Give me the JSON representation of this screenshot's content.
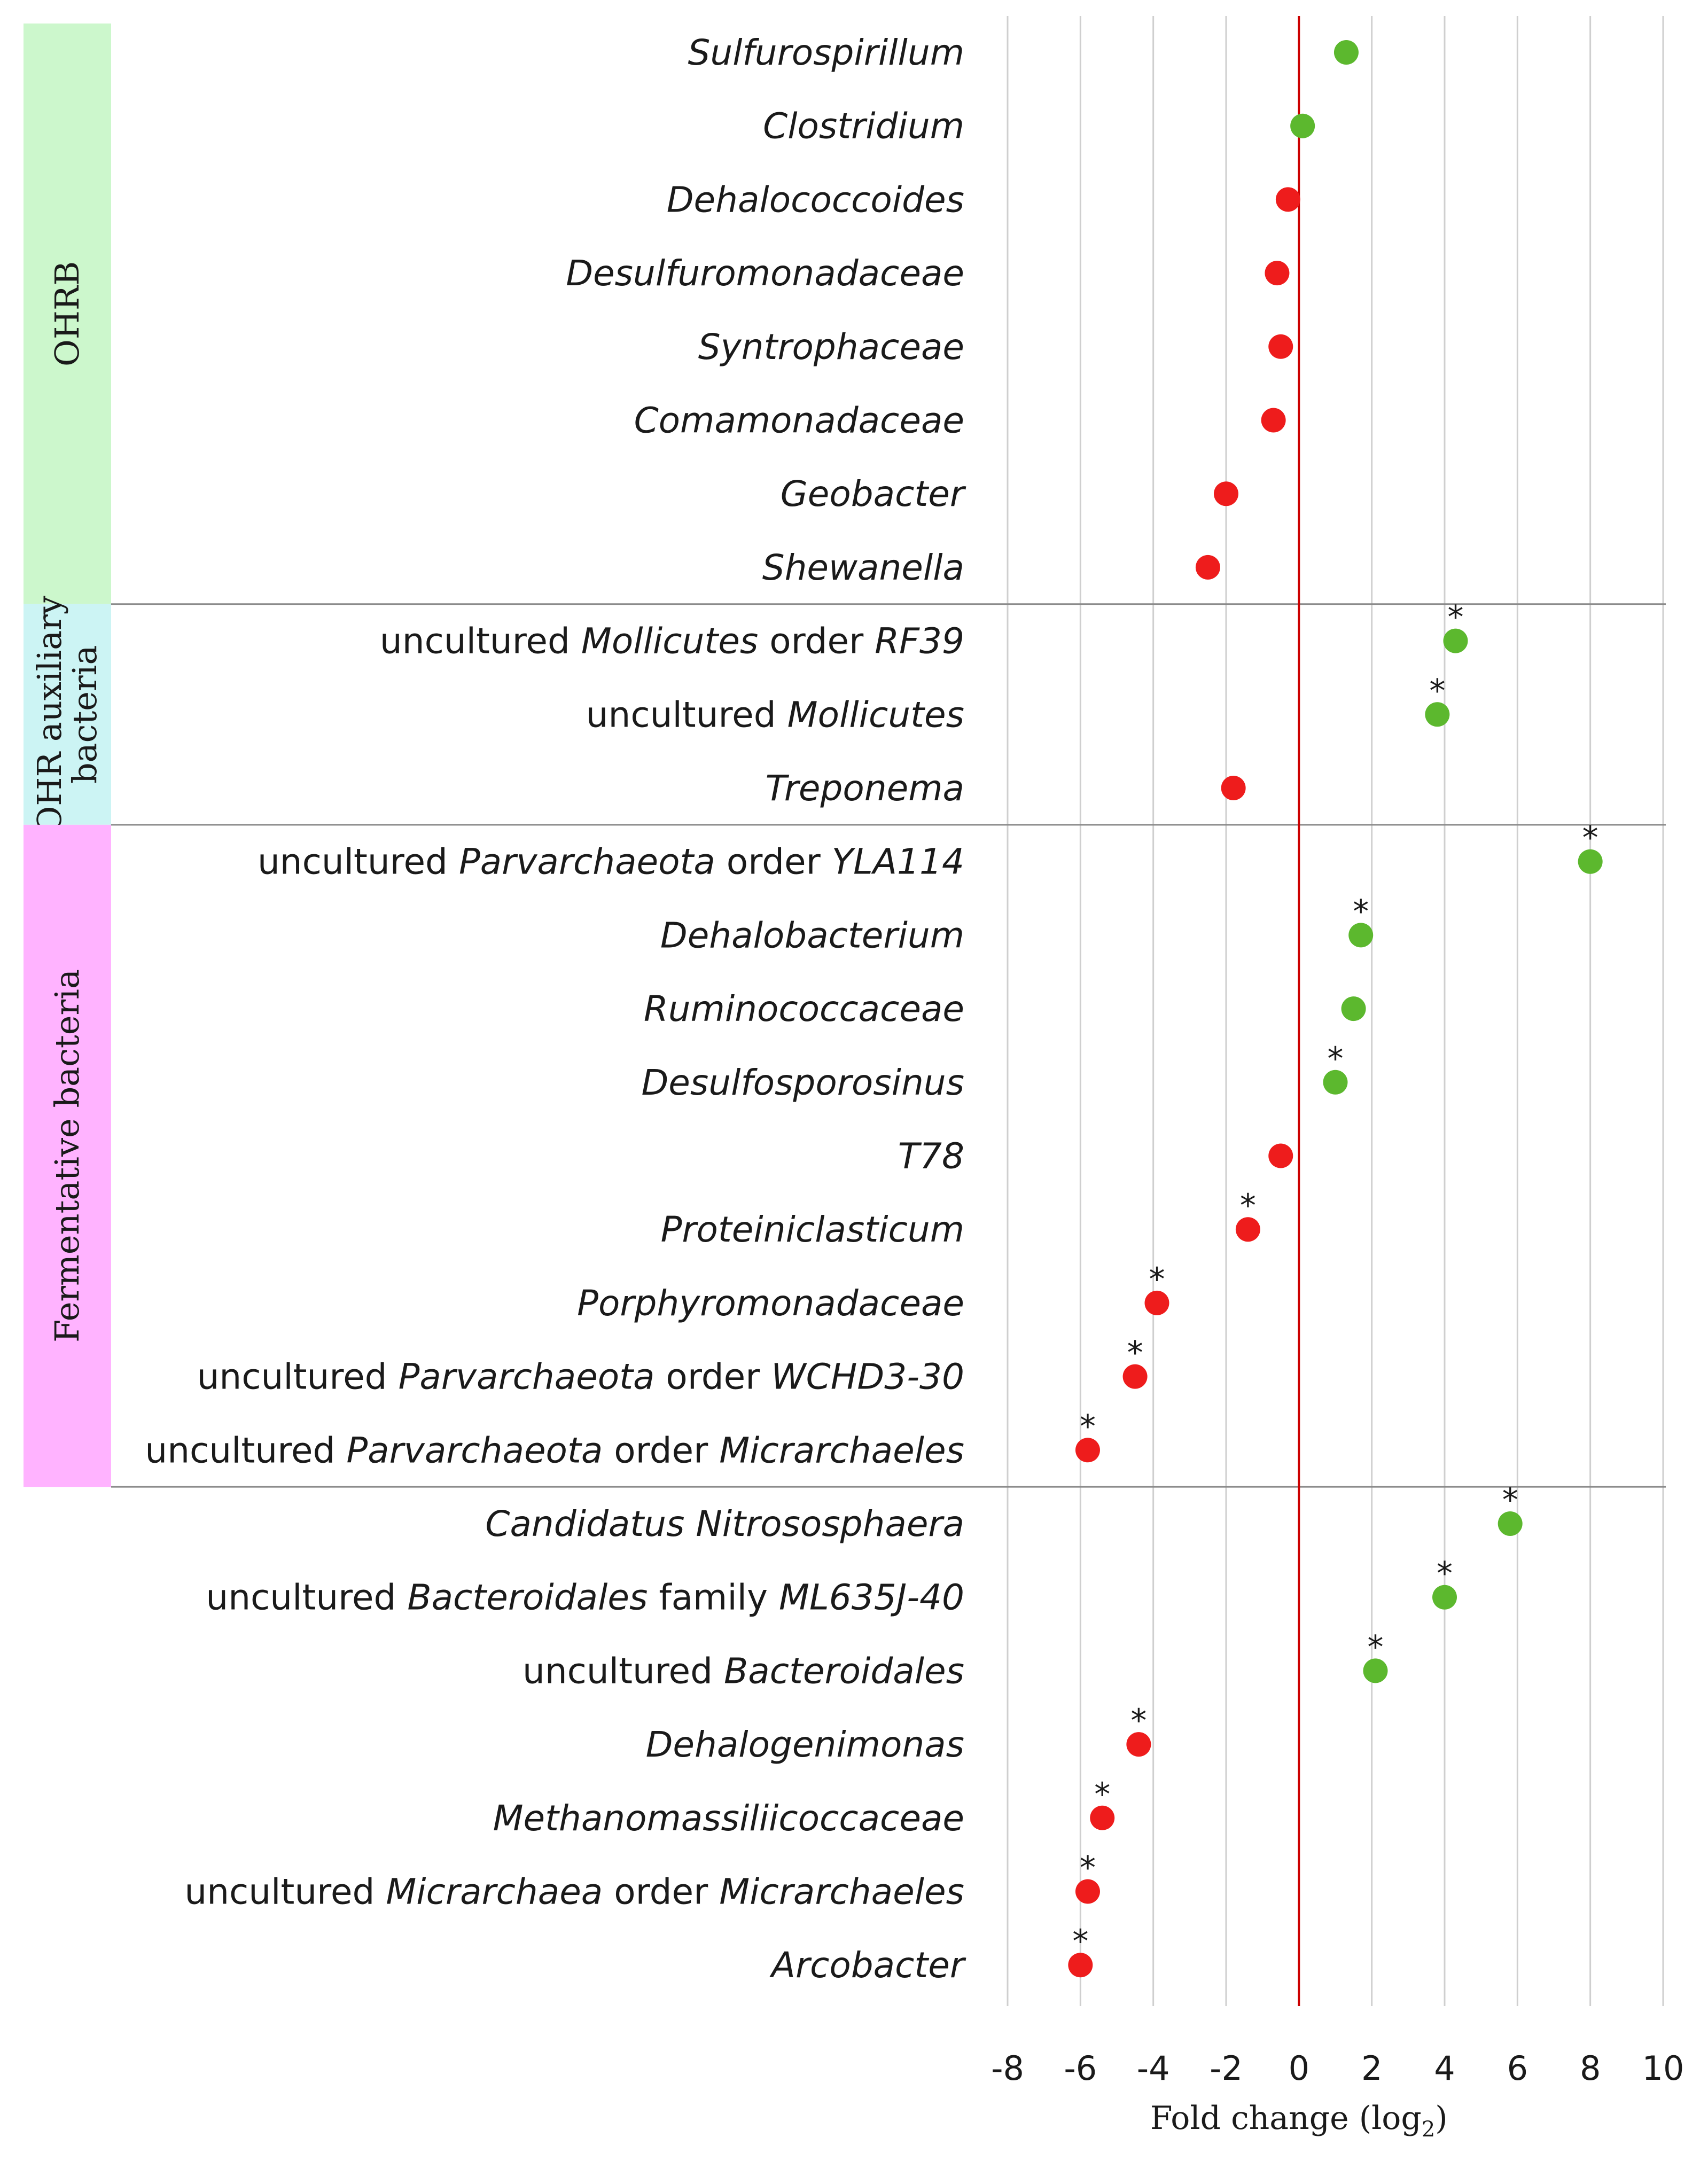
{
  "chart_data": {
    "type": "scatter",
    "orientation": "horizontal",
    "xlabel": "Fold change (log",
    "xlabel_subscript": "2",
    "xlabel_suffix": ")",
    "xlim": [
      -8,
      10
    ],
    "xticks": [
      "-8",
      "-6",
      "-4",
      "-2",
      "0",
      "2",
      "4",
      "6",
      "8",
      "10"
    ],
    "grid": "vertical",
    "reference_line_x": 0,
    "colors": {
      "positive": "#5cb82e",
      "negative": "#ee1c1c",
      "reference_line": "#cc0000",
      "grid": "#cfcfcf",
      "separator": "#8a8a8a",
      "group_ohrb": "#ccf7cc",
      "group_auxiliary": "#ccf4f4",
      "group_fermentative": "#ffb3ff"
    },
    "groups": [
      {
        "label": "OHRB",
        "label_lines": [
          "OHRB"
        ],
        "first_row": 0,
        "last_row": 7,
        "color": "group_ohrb"
      },
      {
        "label": "OHR auxiliary bacteria",
        "label_lines": [
          "OHR auxiliary",
          "bacteria"
        ],
        "first_row": 8,
        "last_row": 10,
        "color": "group_auxiliary"
      },
      {
        "label": "Fermentative bacteria",
        "label_lines": [
          "Fermentative bacteria"
        ],
        "first_row": 11,
        "last_row": 19,
        "color": "group_fermentative"
      },
      {
        "label": "",
        "label_lines": [],
        "first_row": 20,
        "last_row": 26,
        "color": ""
      }
    ],
    "rows": [
      {
        "label": [
          {
            "t": "Sulfurospirillum",
            "i": true
          }
        ],
        "value": 1.3,
        "significant": false
      },
      {
        "label": [
          {
            "t": "Clostridium",
            "i": true
          }
        ],
        "value": 0.1,
        "significant": false
      },
      {
        "label": [
          {
            "t": "Dehalococcoides",
            "i": true
          }
        ],
        "value": -0.3,
        "significant": false
      },
      {
        "label": [
          {
            "t": "Desulfuromonadaceae",
            "i": true
          }
        ],
        "value": -0.6,
        "significant": false
      },
      {
        "label": [
          {
            "t": "Syntrophaceae",
            "i": true
          }
        ],
        "value": -0.5,
        "significant": false
      },
      {
        "label": [
          {
            "t": "Comamonadaceae",
            "i": true
          }
        ],
        "value": -0.7,
        "significant": false
      },
      {
        "label": [
          {
            "t": "Geobacter",
            "i": true
          }
        ],
        "value": -2.0,
        "significant": false
      },
      {
        "label": [
          {
            "t": "Shewanella",
            "i": true
          }
        ],
        "value": -2.5,
        "significant": false
      },
      {
        "label": [
          {
            "t": "uncultured ",
            "i": false
          },
          {
            "t": "Mollicutes",
            "i": true
          },
          {
            "t": " order ",
            "i": false
          },
          {
            "t": "RF39",
            "i": true
          }
        ],
        "value": 4.3,
        "significant": true
      },
      {
        "label": [
          {
            "t": "uncultured ",
            "i": false
          },
          {
            "t": "Mollicutes",
            "i": true
          }
        ],
        "value": 3.8,
        "significant": true
      },
      {
        "label": [
          {
            "t": "Treponema",
            "i": true
          }
        ],
        "value": -1.8,
        "significant": false
      },
      {
        "label": [
          {
            "t": "uncultured ",
            "i": false
          },
          {
            "t": "Parvarchaeota",
            "i": true
          },
          {
            "t": " order ",
            "i": false
          },
          {
            "t": "YLA114",
            "i": true
          }
        ],
        "value": 8.0,
        "significant": true
      },
      {
        "label": [
          {
            "t": "Dehalobacterium",
            "i": true
          }
        ],
        "value": 1.7,
        "significant": true
      },
      {
        "label": [
          {
            "t": "Ruminococcaceae",
            "i": true
          }
        ],
        "value": 1.5,
        "significant": false
      },
      {
        "label": [
          {
            "t": "Desulfosporosinus",
            "i": true
          }
        ],
        "value": 1.0,
        "significant": true
      },
      {
        "label": [
          {
            "t": "T78",
            "i": true
          }
        ],
        "value": -0.5,
        "significant": false
      },
      {
        "label": [
          {
            "t": "Proteiniclasticum",
            "i": true
          }
        ],
        "value": -1.4,
        "significant": true
      },
      {
        "label": [
          {
            "t": "Porphyromonadaceae",
            "i": true
          }
        ],
        "value": -3.9,
        "significant": true
      },
      {
        "label": [
          {
            "t": "uncultured ",
            "i": false
          },
          {
            "t": "Parvarchaeota",
            "i": true
          },
          {
            "t": " order ",
            "i": false
          },
          {
            "t": "WCHD3-30",
            "i": true
          }
        ],
        "value": -4.5,
        "significant": true
      },
      {
        "label": [
          {
            "t": "uncultured ",
            "i": false
          },
          {
            "t": "Parvarchaeota",
            "i": true
          },
          {
            "t": " order ",
            "i": false
          },
          {
            "t": "Micrarchaeles",
            "i": true
          }
        ],
        "value": -5.8,
        "significant": true
      },
      {
        "label": [
          {
            "t": "Candidatus Nitrososphaera",
            "i": true
          }
        ],
        "value": 5.8,
        "significant": true
      },
      {
        "label": [
          {
            "t": "uncultured ",
            "i": false
          },
          {
            "t": "Bacteroidales",
            "i": true
          },
          {
            "t": " family ",
            "i": false
          },
          {
            "t": "ML635J-40",
            "i": true
          }
        ],
        "value": 4.0,
        "significant": true
      },
      {
        "label": [
          {
            "t": "uncultured ",
            "i": false
          },
          {
            "t": "Bacteroidales",
            "i": true
          }
        ],
        "value": 2.1,
        "significant": true
      },
      {
        "label": [
          {
            "t": "Dehalogenimonas",
            "i": true
          }
        ],
        "value": -4.4,
        "significant": true
      },
      {
        "label": [
          {
            "t": "Methanomassiliicoccaceae",
            "i": true
          }
        ],
        "value": -5.4,
        "significant": true
      },
      {
        "label": [
          {
            "t": "uncultured ",
            "i": false
          },
          {
            "t": "Micrarchaea",
            "i": true
          },
          {
            "t": " order ",
            "i": false
          },
          {
            "t": "Micrarchaeles",
            "i": true
          }
        ],
        "value": -5.8,
        "significant": true
      },
      {
        "label": [
          {
            "t": "Arcobacter",
            "i": true
          }
        ],
        "value": -6.0,
        "significant": true
      }
    ],
    "significance_marker": "*"
  }
}
